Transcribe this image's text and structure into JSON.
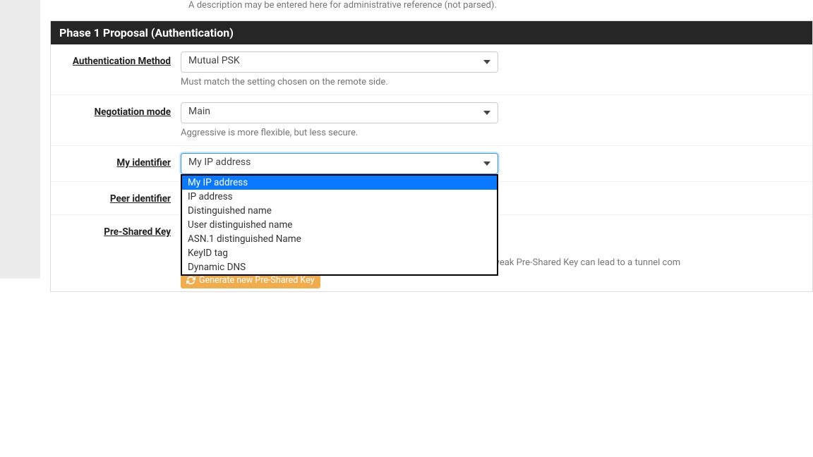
{
  "colors": {
    "header_bg": "#262626",
    "header_text": "#ffffff",
    "help_text": "#777777",
    "label_text": "#212121",
    "select_border": "#cccccc",
    "select_focus_border": "#339af0",
    "dropdown_border": "#000000",
    "option_selected_bg": "#0a78ff",
    "option_selected_text": "#ffffff",
    "btn_bg": "#f0ad4e",
    "btn_text": "#ffffff",
    "sidebar_bg": "#ececec",
    "row_border": "#f0f0f0"
  },
  "description_help": "A description may be entered here for administrative reference (not parsed).",
  "panel": {
    "title": "Phase 1 Proposal (Authentication)"
  },
  "rows": {
    "auth_method": {
      "label": "Authentication Method",
      "value": "Mutual PSK",
      "help": "Must match the setting chosen on the remote side."
    },
    "negotiation_mode": {
      "label": "Negotiation mode",
      "value": "Main",
      "help": "Aggressive is more flexible, but less secure."
    },
    "my_identifier": {
      "label": "My identifier",
      "value": "My IP address",
      "options": [
        "My IP address",
        "IP address",
        "Distinguished name",
        "User distinguished name",
        "ASN.1 distinguished Name",
        "KeyID tag",
        "Dynamic DNS"
      ],
      "selected_index": 0
    },
    "peer_identifier": {
      "label": "Peer identifier"
    },
    "psk": {
      "label": "Pre-Shared Key",
      "help": "This key should be long and random to protect the tunnel and its contents. A weak Pre-Shared Key can lead to a tunnel com",
      "button": "Generate new Pre-Shared Key"
    }
  }
}
